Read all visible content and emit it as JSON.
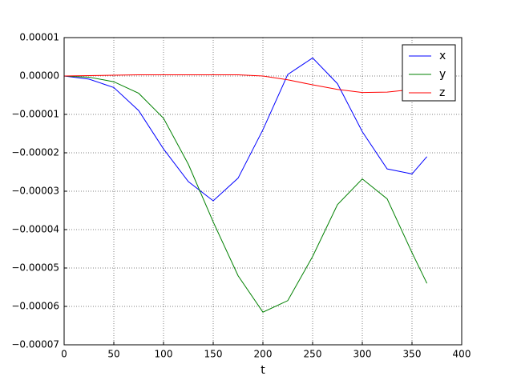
{
  "chart_data": {
    "type": "line",
    "xlabel": "t",
    "x": [
      0,
      25,
      50,
      75,
      100,
      125,
      150,
      175,
      200,
      225,
      250,
      275,
      300,
      325,
      350,
      365
    ],
    "series": [
      {
        "name": "x",
        "color": "#0000ff",
        "values": [
          0,
          -8e-07,
          -3e-06,
          -9e-06,
          -1.9e-05,
          -2.75e-05,
          -3.25e-05,
          -2.66e-05,
          -1.4e-05,
          4e-07,
          4.7e-06,
          -2e-06,
          -1.45e-05,
          -2.42e-05,
          -2.55e-05,
          -2.1e-05
        ]
      },
      {
        "name": "y",
        "color": "#008000",
        "values": [
          0,
          -3e-07,
          -1.5e-06,
          -4.5e-06,
          -1.1e-05,
          -2.3e-05,
          -3.8e-05,
          -5.2e-05,
          -6.15e-05,
          -5.85e-05,
          -4.7e-05,
          -3.35e-05,
          -2.68e-05,
          -3.2e-05,
          -4.6e-05,
          -5.4e-05
        ]
      },
      {
        "name": "z",
        "color": "#ff0000",
        "values": [
          0,
          1e-07,
          2e-07,
          3e-07,
          3e-07,
          3e-07,
          3e-07,
          3e-07,
          0,
          -1e-06,
          -2.3e-06,
          -3.5e-06,
          -4.3e-06,
          -4.2e-06,
          -3.5e-06,
          -3e-06
        ]
      }
    ],
    "xlim": [
      0,
      400
    ],
    "xticks": [
      0,
      50,
      100,
      150,
      200,
      250,
      300,
      350,
      400
    ],
    "ylim": [
      -7e-05,
      1e-05
    ],
    "yticks": [
      {
        "value": -7e-05,
        "label": "−0.00007"
      },
      {
        "value": -6e-05,
        "label": "−0.00006"
      },
      {
        "value": -5e-05,
        "label": "−0.00005"
      },
      {
        "value": -4e-05,
        "label": "−0.00004"
      },
      {
        "value": -3e-05,
        "label": "−0.00003"
      },
      {
        "value": -2e-05,
        "label": "−0.00002"
      },
      {
        "value": -1e-05,
        "label": "−0.00001"
      },
      {
        "value": 0,
        "label": "0.00000"
      },
      {
        "value": 1e-05,
        "label": "0.00001"
      }
    ],
    "grid": true,
    "legend": "upper right"
  }
}
